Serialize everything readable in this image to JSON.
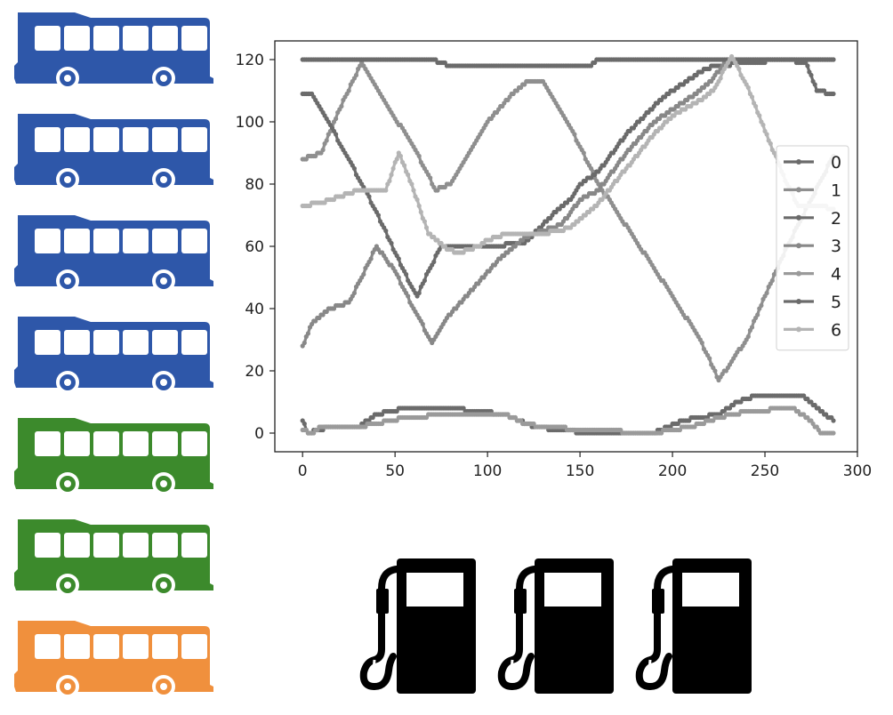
{
  "buses": [
    {
      "color": "#2e57a9"
    },
    {
      "color": "#2e57a9"
    },
    {
      "color": "#2e57a9"
    },
    {
      "color": "#2e57a9"
    },
    {
      "color": "#3c8a2c"
    },
    {
      "color": "#3c8a2c"
    },
    {
      "color": "#f0903d"
    }
  ],
  "fuel_pumps": [
    {
      "icon": "fuel-pump-icon",
      "color": "#000000"
    },
    {
      "icon": "fuel-pump-icon",
      "color": "#000000"
    },
    {
      "icon": "fuel-pump-icon",
      "color": "#000000"
    }
  ],
  "chart_data": {
    "type": "line",
    "title": "",
    "xlabel": "",
    "ylabel": "",
    "xlim": [
      -15,
      300
    ],
    "ylim": [
      -6,
      126
    ],
    "xticks": [
      0,
      50,
      100,
      150,
      200,
      250,
      300
    ],
    "yticks": [
      0,
      20,
      40,
      60,
      80,
      100,
      120
    ],
    "grid": false,
    "legend_position": "right",
    "series": [
      {
        "name": "0",
        "color": "#6b6b6b",
        "points": [
          [
            0,
            4
          ],
          [
            3,
            0
          ],
          [
            15,
            2
          ],
          [
            30,
            2
          ],
          [
            40,
            6
          ],
          [
            55,
            8
          ],
          [
            80,
            8
          ],
          [
            110,
            6
          ],
          [
            125,
            2
          ],
          [
            155,
            0
          ],
          [
            190,
            0
          ],
          [
            205,
            4
          ],
          [
            225,
            6
          ],
          [
            235,
            10
          ],
          [
            245,
            12
          ],
          [
            270,
            12
          ],
          [
            285,
            5
          ],
          [
            287,
            4
          ]
        ]
      },
      {
        "name": "1",
        "color": "#8f8f8f",
        "points": [
          [
            0,
            88
          ],
          [
            10,
            90
          ],
          [
            20,
            104
          ],
          [
            32,
            119
          ],
          [
            45,
            106
          ],
          [
            60,
            92
          ],
          [
            72,
            78
          ],
          [
            80,
            80
          ],
          [
            100,
            100
          ],
          [
            115,
            110
          ],
          [
            122,
            113
          ],
          [
            130,
            113
          ],
          [
            145,
            98
          ],
          [
            160,
            80
          ],
          [
            180,
            62
          ],
          [
            200,
            44
          ],
          [
            215,
            30
          ],
          [
            225,
            17
          ],
          [
            240,
            30
          ],
          [
            250,
            44
          ],
          [
            262,
            60
          ],
          [
            275,
            75
          ],
          [
            287,
            89
          ]
        ]
      },
      {
        "name": "2",
        "color": "#6b6b6b",
        "points": [
          [
            0,
            109
          ],
          [
            5,
            109
          ],
          [
            12,
            102
          ],
          [
            25,
            88
          ],
          [
            40,
            71
          ],
          [
            50,
            58
          ],
          [
            58,
            48
          ],
          [
            62,
            44
          ],
          [
            68,
            52
          ],
          [
            75,
            60
          ],
          [
            100,
            60
          ],
          [
            120,
            61
          ],
          [
            135,
            70
          ],
          [
            145,
            75
          ],
          [
            150,
            80
          ],
          [
            160,
            84
          ],
          [
            175,
            96
          ],
          [
            190,
            105
          ],
          [
            200,
            110
          ],
          [
            215,
            116
          ],
          [
            222,
            118
          ],
          [
            260,
            120
          ],
          [
            272,
            119
          ],
          [
            278,
            110
          ],
          [
            287,
            109
          ]
        ]
      },
      {
        "name": "3",
        "color": "#888888",
        "points": [
          [
            0,
            28
          ],
          [
            5,
            35
          ],
          [
            15,
            40
          ],
          [
            25,
            42
          ],
          [
            32,
            50
          ],
          [
            40,
            60
          ],
          [
            50,
            52
          ],
          [
            60,
            40
          ],
          [
            70,
            29
          ],
          [
            78,
            37
          ],
          [
            90,
            45
          ],
          [
            105,
            55
          ],
          [
            120,
            63
          ],
          [
            130,
            65
          ],
          [
            140,
            67
          ],
          [
            150,
            75
          ],
          [
            160,
            78
          ],
          [
            175,
            90
          ],
          [
            190,
            100
          ],
          [
            200,
            104
          ],
          [
            215,
            110
          ],
          [
            222,
            114
          ],
          [
            230,
            120
          ],
          [
            240,
            120
          ],
          [
            287,
            120
          ]
        ]
      },
      {
        "name": "4",
        "color": "#9a9a9a",
        "points": [
          [
            0,
            1
          ],
          [
            5,
            0
          ],
          [
            10,
            2
          ],
          [
            30,
            2
          ],
          [
            40,
            3
          ],
          [
            55,
            5
          ],
          [
            80,
            6
          ],
          [
            110,
            6
          ],
          [
            120,
            3
          ],
          [
            130,
            2
          ],
          [
            155,
            1
          ],
          [
            190,
            0
          ],
          [
            210,
            2
          ],
          [
            225,
            5
          ],
          [
            240,
            7
          ],
          [
            265,
            8
          ],
          [
            275,
            4
          ],
          [
            280,
            0
          ],
          [
            287,
            0
          ]
        ]
      },
      {
        "name": "5",
        "color": "#6b6b6b",
        "points": [
          [
            0,
            120
          ],
          [
            70,
            120
          ],
          [
            80,
            118
          ],
          [
            100,
            118
          ],
          [
            155,
            118
          ],
          [
            160,
            120
          ],
          [
            250,
            120
          ],
          [
            287,
            120
          ]
        ]
      },
      {
        "name": "6",
        "color": "#b4b4b4",
        "points": [
          [
            0,
            73
          ],
          [
            10,
            74
          ],
          [
            20,
            76
          ],
          [
            30,
            78
          ],
          [
            45,
            78
          ],
          [
            52,
            90
          ],
          [
            60,
            78
          ],
          [
            68,
            64
          ],
          [
            78,
            59
          ],
          [
            85,
            58
          ],
          [
            95,
            60
          ],
          [
            100,
            62
          ],
          [
            110,
            64
          ],
          [
            130,
            64
          ],
          [
            145,
            66
          ],
          [
            160,
            74
          ],
          [
            175,
            85
          ],
          [
            190,
            96
          ],
          [
            200,
            102
          ],
          [
            215,
            107
          ],
          [
            222,
            110
          ],
          [
            232,
            121
          ],
          [
            240,
            112
          ],
          [
            248,
            100
          ],
          [
            255,
            90
          ],
          [
            262,
            80
          ],
          [
            268,
            73
          ],
          [
            280,
            73
          ],
          [
            287,
            72
          ]
        ]
      }
    ]
  }
}
